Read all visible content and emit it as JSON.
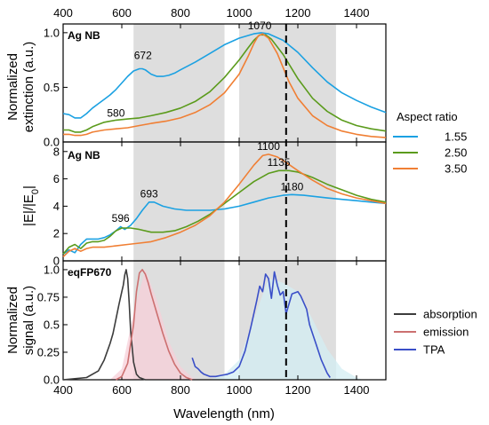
{
  "chart_data": [
    {
      "type": "line",
      "panel_label": "Ag NB",
      "ylabel_lines": [
        "Normalized",
        "extinction (a.u.)"
      ],
      "xlim": [
        400,
        1500
      ],
      "ylim": [
        0,
        1.08
      ],
      "yticks": [
        0.0,
        0.5,
        1.0
      ],
      "ytick_labels": [
        "0.0",
        "0.5",
        "1.0"
      ],
      "xticks": [
        400,
        600,
        800,
        1000,
        1200,
        1400
      ],
      "xtick_labels_top": [
        "400",
        "600",
        "800",
        "1000",
        "1200",
        "1400"
      ],
      "series": [
        {
          "name": "1.55",
          "color": "#1ba1e2",
          "x": [
            400,
            420,
            440,
            460,
            480,
            500,
            520,
            540,
            560,
            580,
            600,
            620,
            640,
            660,
            670,
            680,
            700,
            720,
            740,
            760,
            780,
            800,
            850,
            900,
            950,
            1000,
            1050,
            1075,
            1100,
            1150,
            1200,
            1250,
            1300,
            1350,
            1400,
            1450,
            1500
          ],
          "y": [
            0.26,
            0.25,
            0.22,
            0.22,
            0.26,
            0.31,
            0.35,
            0.39,
            0.43,
            0.48,
            0.54,
            0.6,
            0.65,
            0.67,
            0.67,
            0.66,
            0.62,
            0.6,
            0.6,
            0.61,
            0.63,
            0.66,
            0.73,
            0.81,
            0.89,
            0.95,
            0.99,
            1.0,
            0.99,
            0.93,
            0.82,
            0.68,
            0.55,
            0.45,
            0.38,
            0.32,
            0.27
          ]
        },
        {
          "name": "2.50",
          "color": "#5b9b1c",
          "x": [
            400,
            420,
            440,
            460,
            480,
            500,
            540,
            580,
            620,
            660,
            700,
            750,
            800,
            850,
            900,
            950,
            1000,
            1030,
            1050,
            1070,
            1090,
            1110,
            1150,
            1200,
            1250,
            1300,
            1350,
            1400,
            1450,
            1500
          ],
          "y": [
            0.11,
            0.11,
            0.09,
            0.09,
            0.11,
            0.14,
            0.18,
            0.2,
            0.21,
            0.22,
            0.24,
            0.27,
            0.31,
            0.37,
            0.46,
            0.59,
            0.75,
            0.86,
            0.93,
            0.98,
            0.98,
            0.94,
            0.8,
            0.58,
            0.4,
            0.28,
            0.2,
            0.15,
            0.12,
            0.1
          ]
        },
        {
          "name": "3.50",
          "color": "#f07f34",
          "x": [
            400,
            420,
            440,
            460,
            480,
            500,
            540,
            580,
            620,
            660,
            700,
            750,
            800,
            850,
            900,
            950,
            1000,
            1030,
            1050,
            1065,
            1080,
            1100,
            1130,
            1170,
            1200,
            1250,
            1300,
            1350,
            1400,
            1450,
            1500
          ],
          "y": [
            0.07,
            0.07,
            0.06,
            0.06,
            0.07,
            0.09,
            0.11,
            0.12,
            0.13,
            0.15,
            0.17,
            0.19,
            0.22,
            0.27,
            0.34,
            0.45,
            0.62,
            0.78,
            0.9,
            0.97,
            0.99,
            0.95,
            0.81,
            0.55,
            0.4,
            0.24,
            0.15,
            0.1,
            0.07,
            0.05,
            0.04
          ]
        }
      ],
      "annotations": [
        {
          "text": "672",
          "x": 672,
          "y": 0.76
        },
        {
          "text": "580",
          "x": 580,
          "y": 0.23
        },
        {
          "text": "1070",
          "x": 1070,
          "y": 1.03
        }
      ]
    },
    {
      "type": "line",
      "panel_label": "Ag NB",
      "ylabel_html_parts": [
        "|E|/|E",
        "0",
        "|"
      ],
      "xlim": [
        400,
        1500
      ],
      "ylim": [
        0,
        8.7
      ],
      "yticks": [
        0,
        2,
        4,
        6,
        8
      ],
      "ytick_labels": [
        "0",
        "2",
        "4",
        "6",
        "8"
      ],
      "series": [
        {
          "name": "1.55",
          "color": "#1ba1e2",
          "x": [
            400,
            420,
            440,
            460,
            480,
            500,
            520,
            540,
            560,
            580,
            596,
            610,
            630,
            650,
            670,
            693,
            710,
            740,
            780,
            820,
            860,
            900,
            950,
            1000,
            1050,
            1100,
            1150,
            1180,
            1220,
            1260,
            1300,
            1350,
            1400,
            1450,
            1500
          ],
          "y": [
            0.5,
            0.8,
            0.6,
            1.2,
            1.6,
            1.6,
            1.6,
            1.7,
            1.9,
            2.2,
            2.5,
            2.3,
            2.6,
            3.1,
            3.7,
            4.3,
            4.3,
            4.0,
            3.8,
            3.7,
            3.7,
            3.7,
            3.8,
            4.0,
            4.3,
            4.6,
            4.8,
            4.85,
            4.8,
            4.7,
            4.6,
            4.5,
            4.4,
            4.3,
            4.2
          ]
        },
        {
          "name": "2.50",
          "color": "#5b9b1c",
          "x": [
            400,
            420,
            440,
            460,
            480,
            500,
            520,
            540,
            560,
            580,
            600,
            630,
            660,
            700,
            740,
            780,
            820,
            860,
            900,
            950,
            1000,
            1050,
            1100,
            1135,
            1170,
            1200,
            1250,
            1300,
            1350,
            1400,
            1450,
            1500
          ],
          "y": [
            0.5,
            1.0,
            1.2,
            0.9,
            1.3,
            1.4,
            1.4,
            1.5,
            1.8,
            2.2,
            2.4,
            2.4,
            2.3,
            2.1,
            2.1,
            2.2,
            2.5,
            2.9,
            3.4,
            4.2,
            5.0,
            5.8,
            6.4,
            6.6,
            6.6,
            6.5,
            6.1,
            5.6,
            5.2,
            4.8,
            4.5,
            4.3
          ]
        },
        {
          "name": "3.50",
          "color": "#f07f34",
          "x": [
            400,
            420,
            440,
            460,
            480,
            500,
            540,
            580,
            620,
            660,
            700,
            750,
            800,
            850,
            900,
            950,
            1000,
            1050,
            1080,
            1100,
            1130,
            1160,
            1200,
            1250,
            1300,
            1350,
            1400,
            1450,
            1500
          ],
          "y": [
            0.3,
            0.7,
            0.9,
            0.7,
            0.9,
            1.0,
            1.0,
            1.1,
            1.2,
            1.3,
            1.4,
            1.7,
            2.1,
            2.6,
            3.3,
            4.3,
            5.6,
            7.0,
            7.7,
            7.8,
            7.6,
            7.2,
            6.6,
            5.9,
            5.3,
            4.9,
            4.6,
            4.4,
            4.2
          ]
        }
      ],
      "annotations": [
        {
          "text": "1100",
          "x": 1100,
          "y": 8.1
        },
        {
          "text": "1135",
          "x": 1135,
          "y": 6.95
        },
        {
          "text": "1180",
          "x": 1180,
          "y": 5.15
        },
        {
          "text": "693",
          "x": 693,
          "y": 4.65
        },
        {
          "text": "596",
          "x": 596,
          "y": 2.85
        }
      ]
    },
    {
      "type": "line",
      "panel_label": "eqFP670",
      "ylabel_lines": [
        "Normalized",
        "signal (a.u.)"
      ],
      "xlabel": "Wavelength (nm)",
      "xlim": [
        400,
        1500
      ],
      "ylim": [
        0,
        1.08
      ],
      "yticks": [
        0.0,
        0.25,
        0.5,
        0.75,
        1.0
      ],
      "ytick_labels": [
        "0.0",
        "0.25",
        "0.5",
        "0.75",
        "1.0"
      ],
      "xticks": [
        400,
        600,
        800,
        1000,
        1200,
        1400
      ],
      "xtick_labels": [
        "400",
        "600",
        "800",
        "1000",
        "1200",
        "1400"
      ],
      "series": [
        {
          "name": "absorption",
          "color": "#3c3c3c",
          "x": [
            400,
            440,
            480,
            520,
            540,
            560,
            570,
            580,
            590,
            600,
            605,
            610,
            615,
            620,
            625,
            630,
            640,
            650,
            660,
            670,
            680
          ],
          "y": [
            0.0,
            0.01,
            0.02,
            0.08,
            0.18,
            0.33,
            0.42,
            0.55,
            0.68,
            0.8,
            0.86,
            0.95,
            1.0,
            0.92,
            0.7,
            0.45,
            0.16,
            0.05,
            0.02,
            0.01,
            0.0
          ]
        },
        {
          "name": "emission",
          "color": "#cc7070",
          "x": [
            580,
            600,
            620,
            640,
            650,
            660,
            670,
            680,
            690,
            700,
            720,
            740,
            760,
            780,
            800,
            820,
            840
          ],
          "y": [
            0.0,
            0.03,
            0.15,
            0.5,
            0.8,
            0.97,
            1.0,
            0.96,
            0.88,
            0.78,
            0.6,
            0.42,
            0.26,
            0.14,
            0.06,
            0.02,
            0.0
          ]
        },
        {
          "name": "TPA",
          "color": "#3a4fc8",
          "x": [
            840,
            850,
            860,
            870,
            880,
            900,
            920,
            940,
            960,
            980,
            1000,
            1020,
            1040,
            1060,
            1070,
            1080,
            1090,
            1100,
            1110,
            1120,
            1130,
            1140,
            1150,
            1160,
            1180,
            1200,
            1210,
            1220,
            1230,
            1240,
            1260,
            1280,
            1300,
            1310
          ],
          "y": [
            0.2,
            0.12,
            0.1,
            0.07,
            0.05,
            0.03,
            0.03,
            0.04,
            0.05,
            0.07,
            0.12,
            0.26,
            0.48,
            0.72,
            0.85,
            0.8,
            0.96,
            0.92,
            0.74,
            0.98,
            0.86,
            0.77,
            0.8,
            0.6,
            0.78,
            0.8,
            0.76,
            0.7,
            0.64,
            0.5,
            0.34,
            0.18,
            0.06,
            0.02
          ]
        }
      ],
      "fills": [
        {
          "color": "#f7cfd8",
          "x": [
            560,
            600,
            640,
            680,
            720,
            760,
            800,
            840,
            860
          ],
          "y": [
            0.0,
            0.1,
            0.6,
            1.0,
            0.72,
            0.35,
            0.12,
            0.02,
            0.0
          ]
        },
        {
          "color": "#d3edf3",
          "x": [
            900,
            950,
            1000,
            1050,
            1100,
            1150,
            1200,
            1250,
            1300,
            1350,
            1400,
            1420
          ],
          "y": [
            0.0,
            0.05,
            0.18,
            0.55,
            0.92,
            0.88,
            0.8,
            0.55,
            0.28,
            0.1,
            0.02,
            0.0
          ]
        }
      ]
    }
  ],
  "shared": {
    "shaded_bands": [
      [
        640,
        950
      ],
      [
        1000,
        1330
      ]
    ],
    "dashed_line_x": 1160,
    "legend_aspect_title": "Aspect ratio",
    "legend_aspect_items": [
      "1.55",
      "2.50",
      "3.50"
    ],
    "legend_aspect_colors": [
      "#1ba1e2",
      "#5b9b1c",
      "#f07f34"
    ],
    "legend_signal_items": [
      "absorption",
      "emission",
      "TPA"
    ],
    "legend_signal_colors": [
      "#3c3c3c",
      "#cc7070",
      "#3a4fc8"
    ]
  }
}
